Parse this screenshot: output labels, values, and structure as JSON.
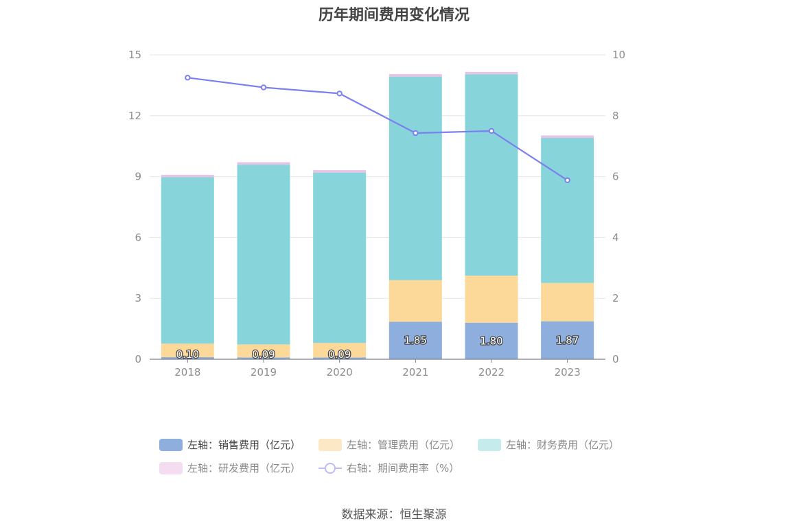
{
  "chart_data": {
    "type": "bar",
    "title": "历年期间费用变化情况",
    "categories": [
      "2018",
      "2019",
      "2020",
      "2021",
      "2022",
      "2023"
    ],
    "y_left": {
      "ticks": [
        "0",
        "3",
        "6",
        "9",
        "12",
        "15"
      ],
      "ylim": [
        0,
        15
      ]
    },
    "y_right": {
      "ticks": [
        "0",
        "2",
        "4",
        "6",
        "8",
        "10"
      ],
      "ylim": [
        0,
        10
      ]
    },
    "stacked": true,
    "grid": true,
    "legend_position": "bottom",
    "series": [
      {
        "name": "左轴：销售费用（亿元）",
        "color": "#8eaedd",
        "axis": "left",
        "type": "bar",
        "values": [
          0.1,
          0.09,
          0.09,
          1.85,
          1.8,
          1.87
        ],
        "labels": [
          "0.10",
          "0.09",
          "0.09",
          "1.85",
          "1.80",
          "1.87"
        ]
      },
      {
        "name": "左轴：管理费用（亿元）",
        "color": "#fdd999",
        "axis": "left",
        "type": "bar",
        "values": [
          0.67,
          0.64,
          0.71,
          2.05,
          2.32,
          1.89
        ]
      },
      {
        "name": "左轴：财务费用（亿元）",
        "color": "#87d5da",
        "axis": "left",
        "type": "bar",
        "values": [
          8.2,
          8.86,
          8.4,
          10.03,
          9.92,
          7.15
        ]
      },
      {
        "name": "左轴：研发费用（亿元）",
        "color": "#e9c3e5",
        "axis": "left",
        "type": "bar",
        "values": [
          0.12,
          0.12,
          0.12,
          0.12,
          0.12,
          0.12
        ]
      },
      {
        "name": "右轴：期间费用率（%）",
        "color": "#7b7ff0",
        "axis": "right",
        "type": "line",
        "values": [
          9.25,
          8.93,
          8.73,
          7.43,
          7.5,
          5.88
        ]
      }
    ]
  },
  "legend": {
    "items": [
      {
        "label": "左轴：销售费用（亿元）",
        "color": "#8eaedd"
      },
      {
        "label": "左轴：管理费用（亿元）",
        "color": "#fde8c6"
      },
      {
        "label": "左轴：财务费用（亿元）",
        "color": "#c5ebed"
      },
      {
        "label": "左轴：研发费用（亿元）",
        "color": "#f4ddf1"
      },
      {
        "label": "右轴：期间费用率（%）",
        "color": "#b8bdf5"
      }
    ]
  },
  "source": "数据来源：恒生聚源"
}
